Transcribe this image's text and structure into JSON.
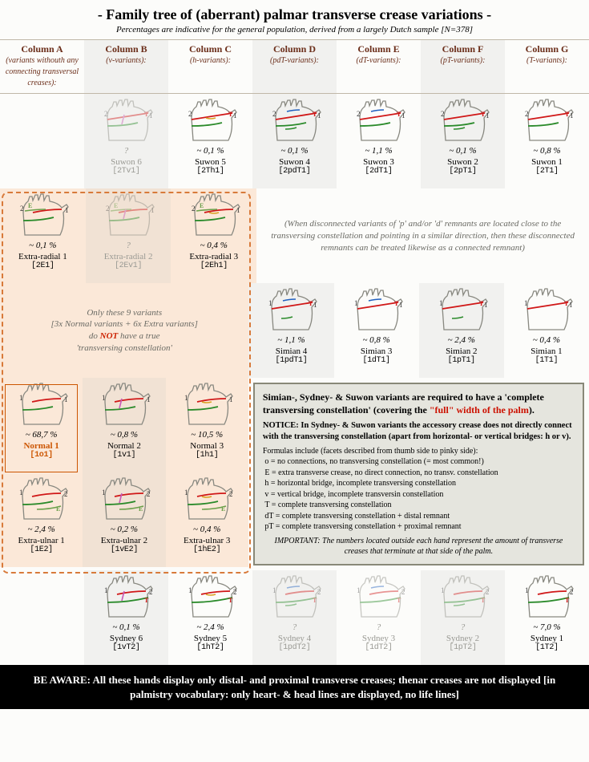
{
  "title": "- Family tree of (aberrant) palmar transverse crease variations -",
  "subtitle": "Percentages are indicative for the general population, derived from a largely Dutch sample [N=378]",
  "columns": [
    {
      "name": "Column A",
      "desc": "(variants withouth any connecting transversal creases):"
    },
    {
      "name": "Column B",
      "desc": "(v-variants):"
    },
    {
      "name": "Column C",
      "desc": "(h-variants):"
    },
    {
      "name": "Column D",
      "desc": "(pdT-variants):"
    },
    {
      "name": "Column E",
      "desc": "(dT-variants):"
    },
    {
      "name": "Column F",
      "desc": "(pT-variants):"
    },
    {
      "name": "Column G",
      "desc": "(T-variants):"
    }
  ],
  "creaseColors": {
    "distal": "#d01818",
    "proximal": "#2a8a2a",
    "bridgeV": "#c85ab8",
    "bridgeH": "#d8a020",
    "remnantD": "#2060c0",
    "remnantP": "#2a8a2a",
    "extra": "#6aa04a",
    "outline": "#888880"
  },
  "row1": [
    {
      "empty": true
    },
    {
      "name": "Suwon 6",
      "code": "[2Tv1]",
      "pct": "?",
      "grey": true,
      "type": "suwon",
      "bridge": "v"
    },
    {
      "name": "Suwon 5",
      "code": "[2Th1]",
      "pct": "~ 0,1 %",
      "type": "suwon",
      "bridge": "h"
    },
    {
      "name": "Suwon 4",
      "code": "[2pdT1]",
      "pct": "~ 0,1 %",
      "type": "suwon",
      "rem": "pd"
    },
    {
      "name": "Suwon 3",
      "code": "[2dT1]",
      "pct": "~ 1,1 %",
      "type": "suwon",
      "rem": "d"
    },
    {
      "name": "Suwon 2",
      "code": "[2pT1]",
      "pct": "~ 0,1 %",
      "type": "suwon",
      "rem": "p"
    },
    {
      "name": "Suwon 1",
      "code": "[2T1]",
      "pct": "~ 0,8 %",
      "type": "suwon"
    }
  ],
  "row2": [
    {
      "name": "Extra-radial 1",
      "code": "[2E1]",
      "pct": "~ 0,1 %",
      "type": "extra-radial",
      "peach": true
    },
    {
      "name": "Extra-radial 2",
      "code": "[2Ev1]",
      "pct": "?",
      "grey": true,
      "type": "extra-radial",
      "bridge": "v",
      "peach": true
    },
    {
      "name": "Extra-radial 3",
      "code": "[2Eh1]",
      "pct": "~ 0,4 %",
      "type": "extra-radial",
      "bridge": "h",
      "peach": true
    },
    {
      "note": "remnant",
      "span": 4
    }
  ],
  "remnantNote": "(When disconnected variants of 'p' and/or 'd' remnants are located close to the transversing constellation and pointing in a similar direction, then these disconnected remnants can be treated likewise as a connected remnant)",
  "row3": [
    {
      "note": "nine",
      "span": 3,
      "peach": true
    },
    {
      "name": "Simian 4",
      "code": "[1pdT1]",
      "pct": "~ 1,1 %",
      "type": "simian",
      "rem": "pd"
    },
    {
      "name": "Simian 3",
      "code": "[1dT1]",
      "pct": "~ 0,8 %",
      "type": "simian",
      "rem": "d"
    },
    {
      "name": "Simian 2",
      "code": "[1pT1]",
      "pct": "~ 2,4 %",
      "type": "simian",
      "rem": "p"
    },
    {
      "name": "Simian 1",
      "code": "[1T1]",
      "pct": "~ 0,4 %",
      "type": "simian"
    }
  ],
  "nineNote1": "Only these 9 variants",
  "nineNote2": "[3x Normal variants + 6x Extra variants]",
  "nineNote3": "do ",
  "nineNoteNot": "NOT",
  "nineNote4": " have a true",
  "nineNote5": "'transversing constellation'",
  "row4": [
    {
      "name": "Normal 1",
      "code": "[1o1]",
      "pct": "~ 68,7 %",
      "type": "normal",
      "normal1": true,
      "peach": true
    },
    {
      "name": "Normal 2",
      "code": "[1v1]",
      "pct": "~ 0,8 %",
      "type": "normal",
      "bridge": "v",
      "peach": true
    },
    {
      "name": "Normal 3",
      "code": "[1h1]",
      "pct": "~ 10,5 %",
      "type": "normal",
      "bridge": "h",
      "peach": true
    },
    {
      "infobox": true,
      "span": 4,
      "rowspan": 2
    }
  ],
  "row5": [
    {
      "name": "Extra-ulnar 1",
      "code": "[1E2]",
      "pct": "~ 2,4 %",
      "type": "extra-ulnar",
      "peach": true
    },
    {
      "name": "Extra-ulnar 2",
      "code": "[1vE2]",
      "pct": "~ 0,2 %",
      "type": "extra-ulnar",
      "bridge": "v",
      "peach": true
    },
    {
      "name": "Extra-ulnar 3",
      "code": "[1hE2]",
      "pct": "~ 0,4 %",
      "type": "extra-ulnar",
      "bridge": "h",
      "peach": true
    }
  ],
  "row6": [
    {
      "empty": true
    },
    {
      "name": "Sydney 6",
      "code": "[1vT2]",
      "pct": "~ 0,1 %",
      "type": "sydney",
      "bridge": "v"
    },
    {
      "name": "Sydney 5",
      "code": "[1hT2]",
      "pct": "~ 2,4 %",
      "type": "sydney",
      "bridge": "h"
    },
    {
      "name": "Sydney 4",
      "code": "[1pdT2]",
      "pct": "?",
      "grey": true,
      "type": "sydney",
      "rem": "pd"
    },
    {
      "name": "Sydney 3",
      "code": "[1dT2]",
      "pct": "?",
      "grey": true,
      "type": "sydney",
      "rem": "d"
    },
    {
      "name": "Sydney 2",
      "code": "[1pT2]",
      "pct": "?",
      "grey": true,
      "type": "sydney",
      "rem": "p"
    },
    {
      "name": "Sydney 1",
      "code": "[1T2]",
      "pct": "~ 7,0 %",
      "type": "sydney"
    }
  ],
  "infobox": {
    "line1a": "Simian-, Sydney- & Suwon variants are required to have a 'complete transversing constellation' (covering the ",
    "line1red": "\"full\" width of the palm",
    "line1b": ").",
    "notice": "NOTICE: In Sydney- & Suwon variants the accessory crease does not directly connect with the transversing constellation (apart from horizontal- or vertical bridges: h or v).",
    "formIntro": "Formulas include (facets described from thumb side to pinky side):",
    "forms": [
      "o  = no connections, no transversing constellation (= most common!)",
      "E  = extra transverse crease, no direct connection, no transv. constellation",
      "h  = horizontal bridge, incomplete transversing constellation",
      "v  = vertical bridge, incomplete transversin constellation",
      "T  = complete transversing constellation",
      "dT = complete transversing constellation + distal remnant",
      "pT = complete transversing constellation + proximal remnant"
    ],
    "important": "IMPORTANT: The numbers located outside each hand represent the amount of transverse creases that terminate at that side of the palm."
  },
  "footer": "BE AWARE: All these hands display only distal- and proximal transverse creases; thenar creases are not displayed [in palmistry vocabulary: only heart- & head lines are displayed, no life lines]",
  "shadeCols": [
    1,
    3,
    5
  ]
}
